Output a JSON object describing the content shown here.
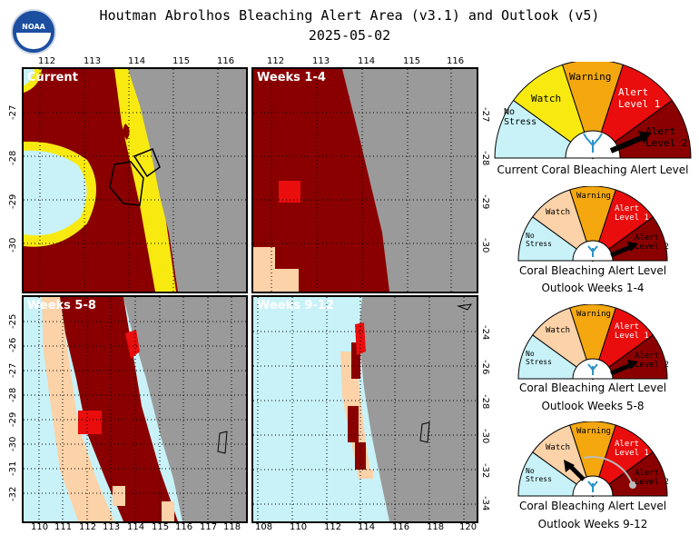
{
  "header": {
    "title": "Houtman Abrolhos Bleaching Alert Area (v3.1) and Outlook (v5)",
    "date": "2025-05-02",
    "logo_text": "NOAA"
  },
  "colors": {
    "no_stress": "#c8f2f8",
    "watch": "#f8ea10",
    "warning": "#f4a70e",
    "alert1": "#ea0d0d",
    "alert2": "#8a0000",
    "land": "#9a9a9a",
    "outlook_watch": "#fcd2a8"
  },
  "panels": [
    {
      "label": "Current",
      "top_ticks": [
        "112",
        "113",
        "114",
        "115",
        "116"
      ],
      "left_ticks": [
        "-27",
        "-28",
        "-29",
        "-30"
      ]
    },
    {
      "label": "Weeks 1-4",
      "top_ticks": [
        "112",
        "113",
        "114",
        "115",
        "116"
      ],
      "right_ticks": [
        "-27",
        "-28",
        "-29",
        "-30"
      ]
    },
    {
      "label": "Weeks 5-8",
      "bottom_ticks": [
        "110",
        "111",
        "112",
        "113",
        "114",
        "115",
        "116",
        "117",
        "118"
      ],
      "left_ticks": [
        "-25",
        "-26",
        "-27",
        "-28",
        "-29",
        "-30",
        "-31",
        "-32"
      ]
    },
    {
      "label": "Weeks 9-12",
      "bottom_ticks": [
        "108",
        "110",
        "112",
        "114",
        "116",
        "118",
        "120"
      ],
      "right_ticks": [
        "-24",
        "-26",
        "-28",
        "-30",
        "-32",
        "-34"
      ]
    }
  ],
  "gauges": [
    {
      "caption1": "Current Coral Bleaching Alert Level",
      "caption2": "",
      "level": "Alert Level 2"
    },
    {
      "caption1": "Coral Bleaching Alert Level",
      "caption2": "Outlook Weeks 1-4",
      "level": "Alert Level 2"
    },
    {
      "caption1": "Coral Bleaching Alert Level",
      "caption2": "Outlook Weeks 5-8",
      "level": "Alert Level 2"
    },
    {
      "caption1": "Coral Bleaching Alert Level",
      "caption2": "Outlook Weeks 9-12",
      "level": "Watch",
      "previous": "Alert Level 2"
    }
  ],
  "gauge_labels": {
    "no_stress": [
      "No",
      "Stress"
    ],
    "watch": "Watch",
    "warning": "Warning",
    "alert1": [
      "Alert",
      "Level 1"
    ],
    "alert2": [
      "Alert",
      "Level 2"
    ]
  }
}
